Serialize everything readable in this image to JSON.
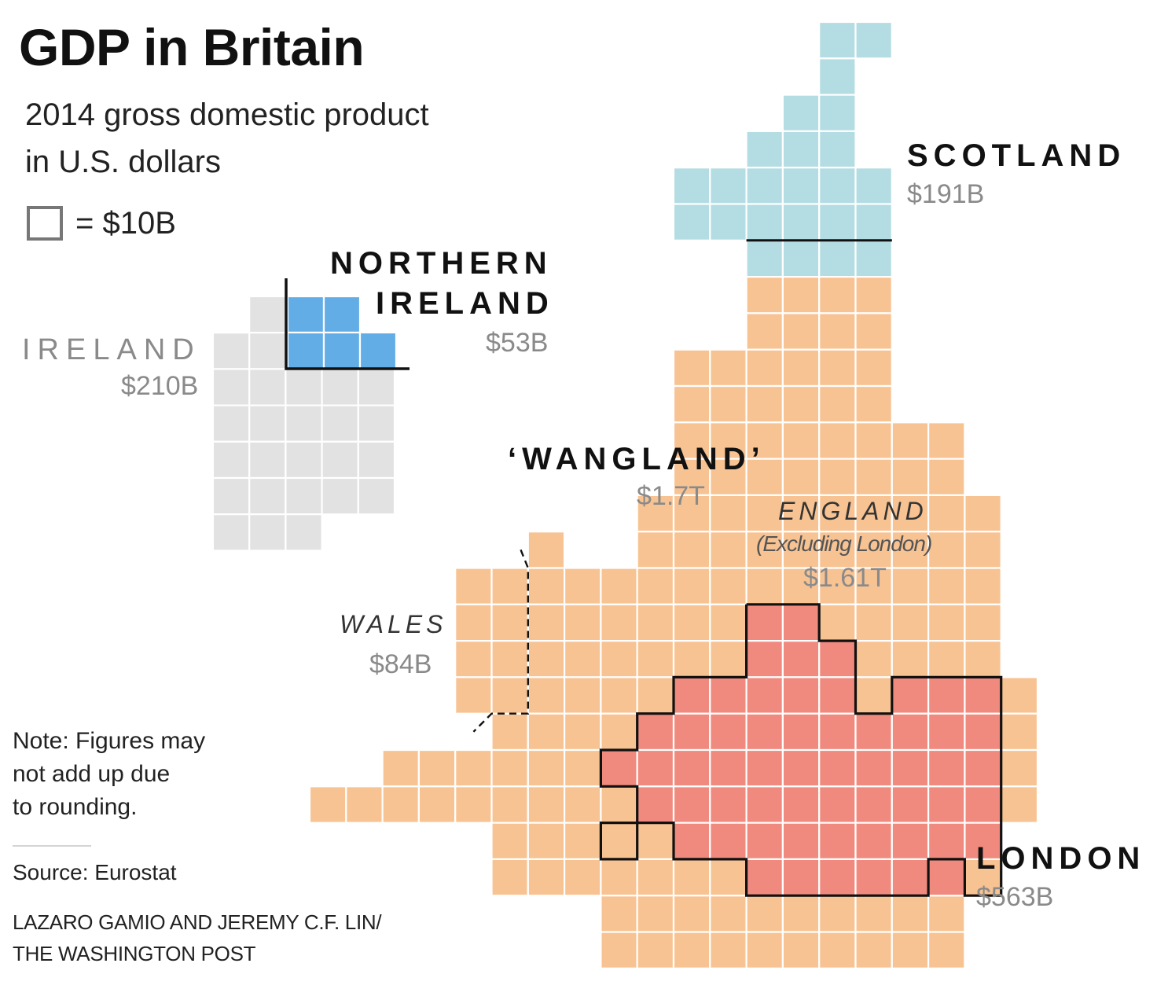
{
  "header": {
    "title": "GDP in Britain",
    "subtitle_line1": "2014 gross domestic product",
    "subtitle_line2": "in U.S. dollars",
    "legend_text": "= $10B"
  },
  "regions": {
    "ireland": {
      "label": "IRELAND",
      "value": "$210B",
      "color": "#e2e2e2"
    },
    "northern_ireland": {
      "label_line1": "NORTHERN",
      "label_line2": "IRELAND",
      "value": "$53B",
      "color": "#62ade5"
    },
    "scotland": {
      "label": "SCOTLAND",
      "value": "$191B",
      "color": "#b3dde2"
    },
    "wangland": {
      "label": "‘WANGLAND’",
      "value": "$1.7T"
    },
    "england": {
      "label": "ENGLAND",
      "sublabel": "(Excluding London)",
      "value": "$1.61T",
      "color": "#f8c393"
    },
    "wales": {
      "label": "WALES",
      "value": "$84B",
      "color": "#f8c393"
    },
    "london": {
      "label": "LONDON",
      "value": "$563B",
      "color": "#f08a7e"
    }
  },
  "footer": {
    "note_line1": "Note: Figures may",
    "note_line2": "not add up due",
    "note_line3": "to rounding.",
    "source": "Source: Eurostat",
    "credit_line1": "LAZARO GAMIO AND JEREMY C.F. LIN/",
    "credit_line2": "THE WASHINGTON POST"
  }
}
